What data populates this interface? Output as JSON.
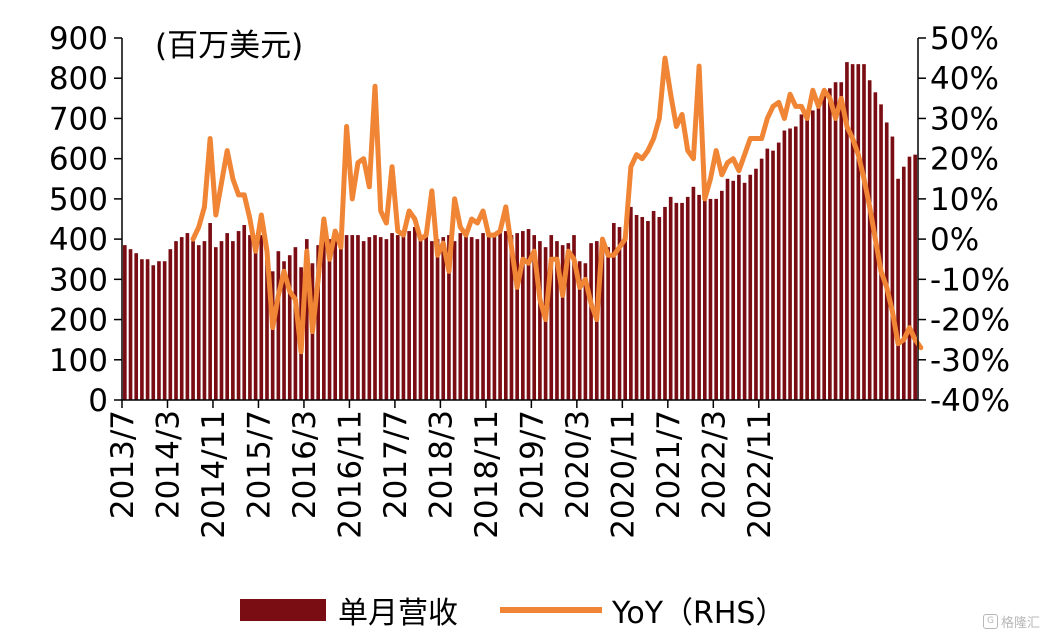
{
  "chart_data": {
    "type": "bar+line",
    "unit_label": "(百万美元)",
    "left_axis": {
      "ticks": [
        "0",
        "100",
        "200",
        "300",
        "400",
        "500",
        "600",
        "700",
        "800",
        "900"
      ],
      "ylim": [
        0,
        900
      ]
    },
    "right_axis": {
      "ticks": [
        "-40%",
        "-30%",
        "-20%",
        "-10%",
        "0%",
        "10%",
        "20%",
        "30%",
        "40%",
        "50%"
      ],
      "ylim": [
        -40,
        50
      ]
    },
    "x_tick_labels": [
      "2013/7",
      "2014/3",
      "2014/11",
      "2015/7",
      "2016/3",
      "2016/11",
      "2017/7",
      "2018/3",
      "2018/11",
      "2019/7",
      "2020/3",
      "2020/11",
      "2021/7",
      "2022/3",
      "2022/11"
    ],
    "x_start": "2013/7",
    "series": [
      {
        "name": "单月营收",
        "type": "bar",
        "color": "#7a0d13",
        "values": [
          385,
          375,
          365,
          350,
          350,
          335,
          345,
          345,
          375,
          395,
          405,
          415,
          395,
          385,
          395,
          440,
          380,
          395,
          415,
          395,
          420,
          435,
          410,
          395,
          410,
          380,
          320,
          370,
          345,
          360,
          380,
          330,
          400,
          340,
          385,
          395,
          400,
          405,
          410,
          410,
          410,
          410,
          395,
          405,
          410,
          405,
          400,
          415,
          410,
          415,
          420,
          430,
          405,
          410,
          395,
          400,
          405,
          410,
          395,
          415,
          420,
          405,
          400,
          415,
          410,
          405,
          415,
          420,
          410,
          415,
          420,
          425,
          410,
          395,
          380,
          410,
          395,
          385,
          390,
          410,
          345,
          340,
          390,
          395,
          385,
          380,
          440,
          430,
          410,
          480,
          460,
          455,
          445,
          470,
          455,
          480,
          505,
          490,
          490,
          505,
          530,
          510,
          500,
          500,
          500,
          520,
          550,
          545,
          560,
          540,
          560,
          575,
          600,
          625,
          620,
          640,
          670,
          675,
          680,
          710,
          720,
          720,
          745,
          760,
          775,
          790,
          790,
          840,
          835,
          835,
          835,
          795,
          765,
          735,
          690,
          655,
          550,
          580,
          605,
          610
        ]
      },
      {
        "name": "YoY（RHS）",
        "type": "line",
        "color": "#ef8535",
        "values": [
          null,
          null,
          null,
          null,
          null,
          null,
          null,
          null,
          null,
          null,
          null,
          null,
          0,
          3,
          8,
          25,
          6,
          14,
          22,
          15,
          11,
          11,
          5,
          -3,
          6,
          -3,
          -22,
          -14,
          -8,
          -13,
          -15,
          -28,
          -3,
          -23,
          -10,
          5,
          -5,
          2,
          -2,
          28,
          10,
          19,
          20,
          13,
          38,
          7,
          4,
          18,
          2,
          1,
          7,
          5,
          0,
          1,
          12,
          -4,
          -1,
          -8,
          10,
          3,
          1,
          5,
          4,
          7,
          1,
          1,
          2,
          8,
          -2,
          -12,
          -5,
          -6,
          -3,
          -15,
          -20,
          -5,
          -5,
          -14,
          -3,
          -5,
          -12,
          -10,
          -16,
          -20,
          0,
          -4,
          -4,
          -2,
          0,
          18,
          21,
          20,
          22,
          25,
          30,
          45,
          36,
          28,
          31,
          22,
          20,
          43,
          10,
          15,
          22,
          16,
          19,
          20,
          17,
          21,
          25,
          25,
          25,
          30,
          33,
          34,
          30,
          36,
          33,
          33,
          30,
          37,
          33,
          37,
          35,
          30,
          35,
          28,
          25,
          21,
          15,
          8,
          0,
          -8,
          -12,
          -18,
          -26,
          -25,
          -22,
          -25,
          -27
        ]
      }
    ],
    "legend_position": "bottom",
    "grid": false
  },
  "watermark": "格隆汇"
}
